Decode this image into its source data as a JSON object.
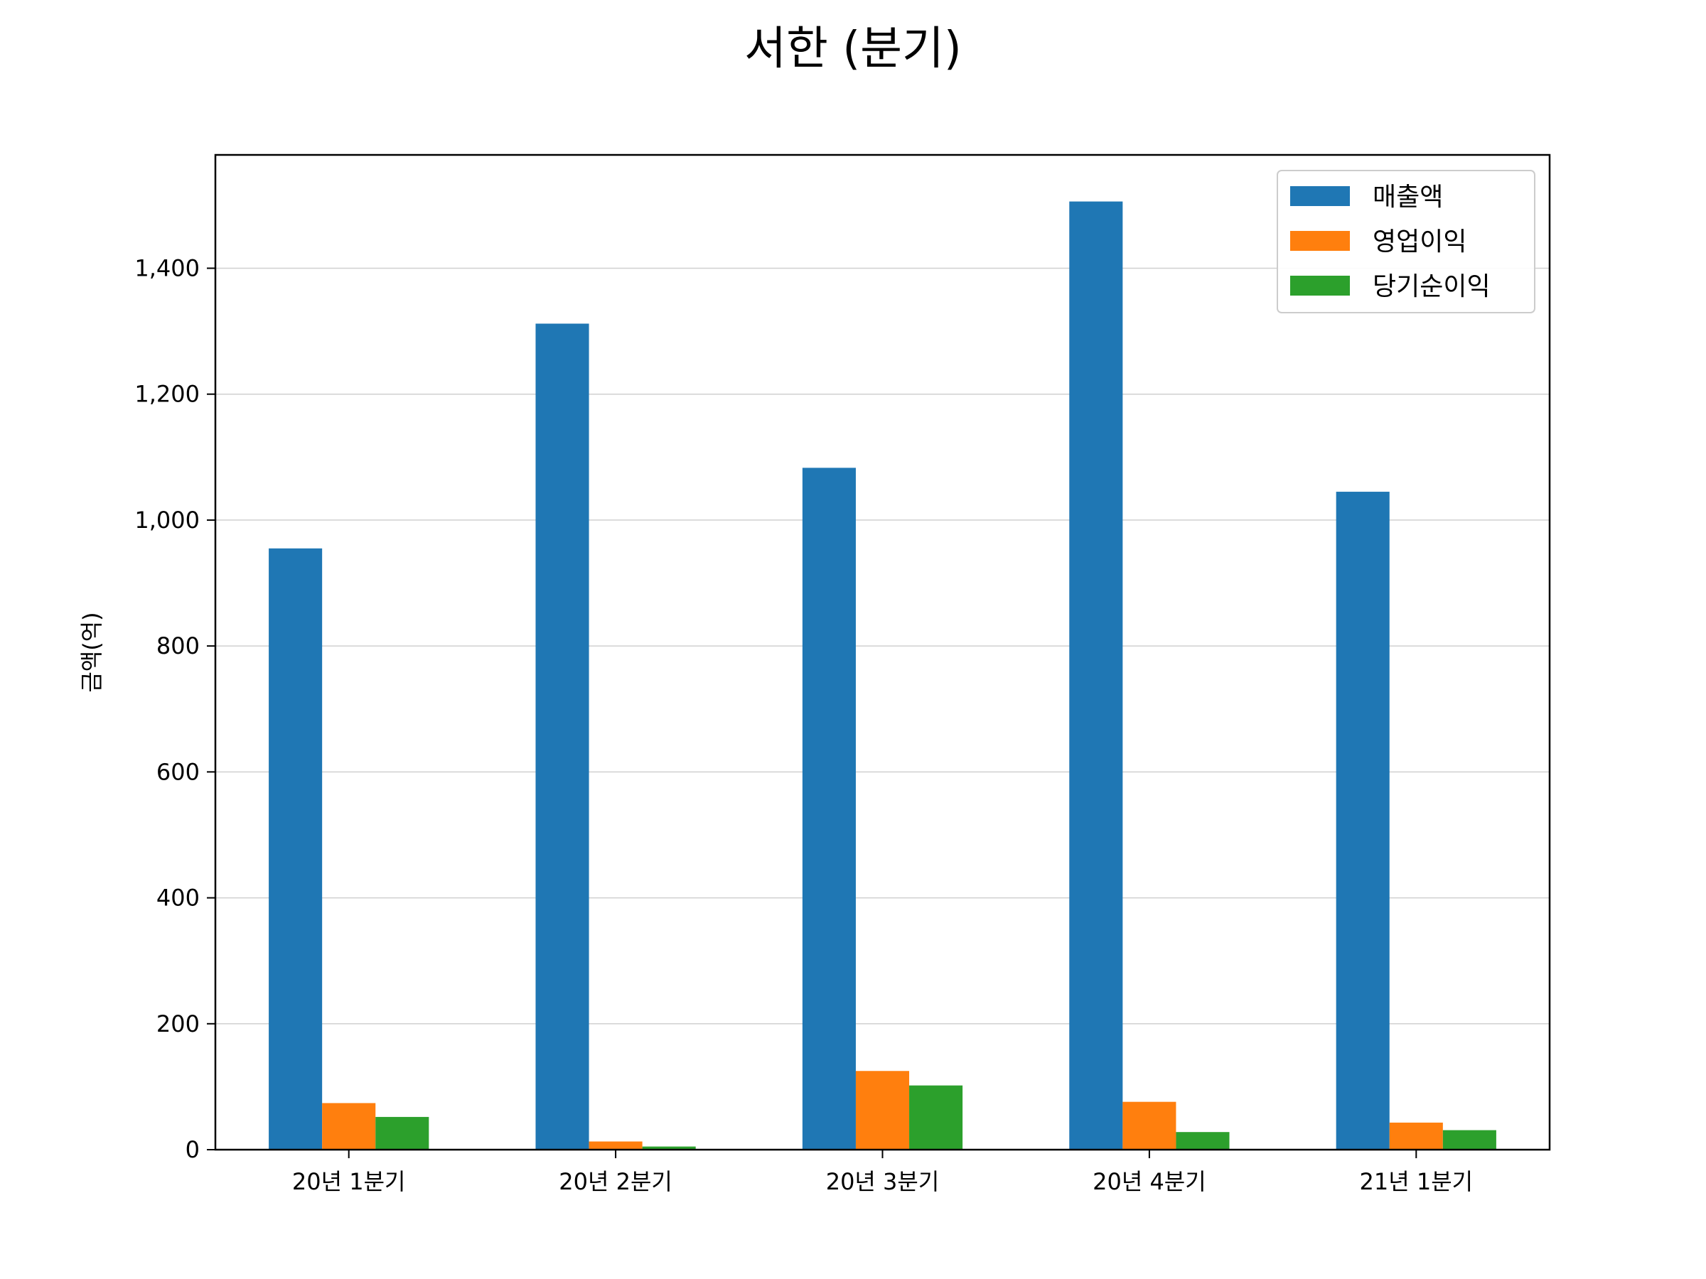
{
  "chart_data": {
    "type": "bar",
    "title": "서한 (분기)",
    "xlabel": "",
    "ylabel": "금액(억)",
    "categories": [
      "20년 1분기",
      "20년 2분기",
      "20년 3분기",
      "20년 4분기",
      "21년 1분기"
    ],
    "series": [
      {
        "name": "매출액",
        "color": "#1f77b4",
        "values": [
          955,
          1312,
          1083,
          1506,
          1045
        ]
      },
      {
        "name": "영업이익",
        "color": "#ff7f0e",
        "values": [
          74,
          13,
          125,
          76,
          43
        ]
      },
      {
        "name": "당기순이익",
        "color": "#2ca02c",
        "values": [
          52,
          5,
          102,
          28,
          31
        ]
      }
    ],
    "ylim": [
      0,
      1580
    ],
    "yticks": [
      0,
      200,
      400,
      600,
      800,
      1000,
      1200,
      1400
    ],
    "ytick_labels": [
      "0",
      "200",
      "400",
      "600",
      "800",
      "1,000",
      "1,200",
      "1,400"
    ],
    "grid": true,
    "legend_position": "top-right"
  }
}
